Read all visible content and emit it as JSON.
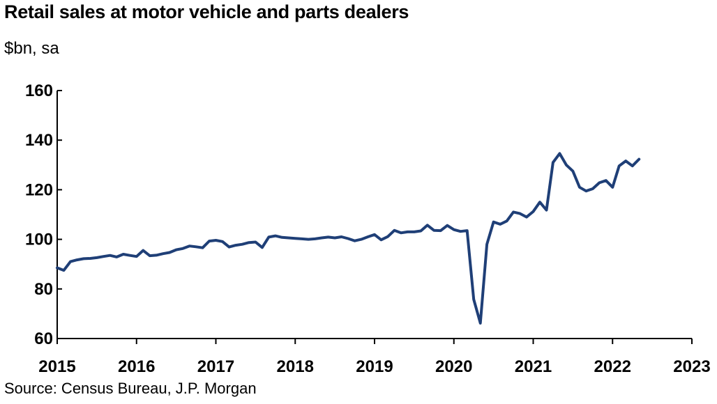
{
  "title": "Retail sales at motor vehicle and parts dealers",
  "subtitle": "$bn, sa",
  "source": "Source: Census Bureau, J.P. Morgan",
  "colors": {
    "line": "#1f3f77",
    "axis": "#000000"
  },
  "chart_data": {
    "type": "line",
    "xlim": [
      2015,
      2023
    ],
    "ylim": [
      60,
      160
    ],
    "x_ticks": [
      "2015",
      "2016",
      "2017",
      "2018",
      "2019",
      "2020",
      "2021",
      "2022",
      "2023"
    ],
    "y_ticks": [
      "60",
      "80",
      "100",
      "120",
      "140",
      "160"
    ],
    "grid": false,
    "series": [
      {
        "start": "2015-01",
        "frequency": "monthly",
        "values": [
          88.5,
          87.5,
          91.0,
          91.7,
          92.2,
          92.3,
          92.6,
          93.1,
          93.5,
          92.9,
          94.0,
          93.5,
          93.1,
          95.5,
          93.4,
          93.6,
          94.2,
          94.7,
          95.8,
          96.3,
          97.3,
          97.0,
          96.6,
          99.3,
          99.6,
          99.1,
          96.9,
          97.6,
          98.0,
          98.7,
          98.9,
          96.7,
          100.9,
          101.4,
          100.8,
          100.6,
          100.4,
          100.2,
          100.0,
          100.2,
          100.6,
          100.9,
          100.6,
          101.0,
          100.3,
          99.4,
          100.0,
          101.0,
          101.9,
          99.8,
          101.1,
          103.6,
          102.6,
          103.0,
          103.0,
          103.4,
          105.7,
          103.6,
          103.5,
          105.6,
          103.9,
          103.2,
          103.5,
          75.8,
          66.2,
          98.0,
          107.0,
          106.1,
          107.4,
          111.0,
          110.4,
          109.0,
          111.2,
          115.0,
          111.8,
          131.0,
          134.6,
          130.0,
          127.5,
          121.0,
          119.5,
          120.4,
          122.8,
          123.7,
          121.0,
          129.6,
          131.6,
          129.6,
          132.3
        ]
      }
    ]
  }
}
